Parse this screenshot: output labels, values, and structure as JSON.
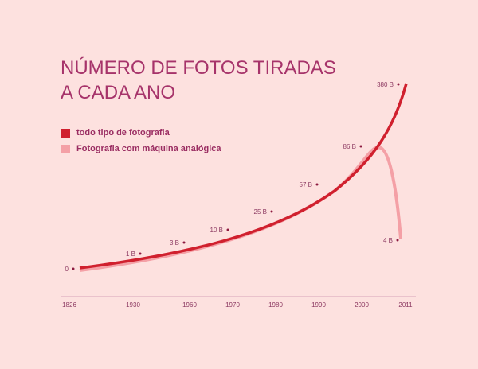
{
  "chart_data": {
    "type": "line",
    "title": [
      "NÚMERO DE FOTOS TIRADAS",
      "A CADA ANO"
    ],
    "xlabel": "",
    "ylabel": "",
    "x_ticks": [
      "1826",
      "1930",
      "1960",
      "1970",
      "1980",
      "1990",
      "2000",
      "2011"
    ],
    "legend": {
      "placement": "top-left",
      "entries": [
        "todo tipo de fotografia",
        "Fotografia com máquina analógica"
      ]
    },
    "series": [
      {
        "name": "todo tipo de fotografia",
        "color": "#d0202e",
        "points": [
          [
            "1826",
            "0"
          ],
          [
            "1930",
            "1 B"
          ],
          [
            "1960",
            "3 B"
          ],
          [
            "1970",
            "10 B"
          ],
          [
            "1980",
            "25 B"
          ],
          [
            "1990",
            "57 B"
          ],
          [
            "2000",
            "86 B"
          ],
          [
            "2011",
            "380 B"
          ]
        ]
      },
      {
        "name": "Fotografia com máquina analógica",
        "color": "#f4a0a6",
        "points": [
          [
            "2011",
            "4 B"
          ]
        ]
      }
    ],
    "annotations": [
      "0",
      "1 B",
      "3 B",
      "10 B",
      "25 B",
      "57 B",
      "86 B",
      "380 B",
      "4 B"
    ]
  }
}
